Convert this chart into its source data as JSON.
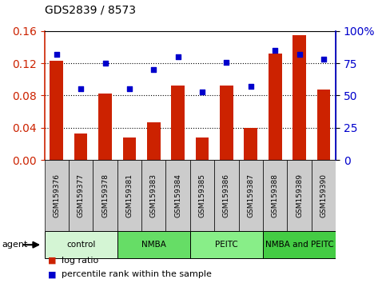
{
  "title": "GDS2839 / 8573",
  "samples": [
    "GSM159376",
    "GSM159377",
    "GSM159378",
    "GSM159381",
    "GSM159383",
    "GSM159384",
    "GSM159385",
    "GSM159386",
    "GSM159387",
    "GSM159388",
    "GSM159389",
    "GSM159390"
  ],
  "log_ratio": [
    0.123,
    0.033,
    0.082,
    0.028,
    0.047,
    0.092,
    0.028,
    0.092,
    0.04,
    0.132,
    0.155,
    0.087
  ],
  "percentile": [
    82,
    55,
    75,
    55,
    70,
    80,
    53,
    76,
    57,
    85,
    82,
    78
  ],
  "bar_color": "#cc2200",
  "dot_color": "#0000cc",
  "ylim_left": [
    0,
    0.16
  ],
  "ylim_right": [
    0,
    100
  ],
  "yticks_left": [
    0,
    0.04,
    0.08,
    0.12,
    0.16
  ],
  "yticks_right": [
    0,
    25,
    50,
    75,
    100
  ],
  "ytick_labels_right": [
    "0",
    "25",
    "50",
    "75",
    "100%"
  ],
  "groups": [
    {
      "label": "control",
      "start": 0,
      "end": 3,
      "color": "#d4f5d4"
    },
    {
      "label": "NMBA",
      "start": 3,
      "end": 6,
      "color": "#66dd66"
    },
    {
      "label": "PEITC",
      "start": 6,
      "end": 9,
      "color": "#88ee88"
    },
    {
      "label": "NMBA and PEITC",
      "start": 9,
      "end": 12,
      "color": "#44cc44"
    }
  ],
  "agent_label": "agent",
  "legend_bar_label": "log ratio",
  "legend_dot_label": "percentile rank within the sample",
  "xtick_bg": "#cccccc",
  "grid_color": "#000000",
  "left_tick_color": "#cc2200",
  "right_tick_color": "#0000cc",
  "plot_bg": "#ffffff",
  "fig_bg": "#ffffff"
}
